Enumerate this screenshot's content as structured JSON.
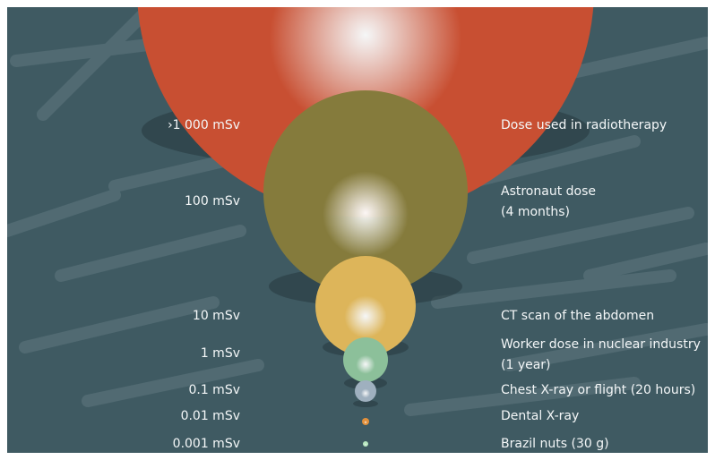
{
  "colors": {
    "background": "#3f5a62",
    "label_text": "#f4f7f8"
  },
  "levels": [
    {
      "dose": "›1 000 mSv",
      "lines": [
        "Dose used in radiotherapy"
      ],
      "color": "#c84f32"
    },
    {
      "dose": "100 mSv",
      "lines": [
        "Astronaut dose",
        "(4 months)"
      ],
      "color": "#857b3c"
    },
    {
      "dose": "10 mSv",
      "lines": [
        "CT scan of the abdomen"
      ],
      "color": "#ddb55a"
    },
    {
      "dose": "1 mSv",
      "lines": [
        "Worker dose in nuclear industry",
        "(1 year)"
      ],
      "color": "#8cc09a"
    },
    {
      "dose": "0.1 mSv",
      "lines": [
        "Chest X-ray or flight (20 hours)"
      ],
      "color": "#9fb0bf"
    },
    {
      "dose": "0.01 mSv",
      "lines": [
        "Dental X-ray"
      ],
      "color": "#e3903a"
    },
    {
      "dose": "0.001 mSv",
      "lines": [
        "Brazil nuts (30 g)"
      ],
      "color": "#b8e8c0"
    }
  ]
}
